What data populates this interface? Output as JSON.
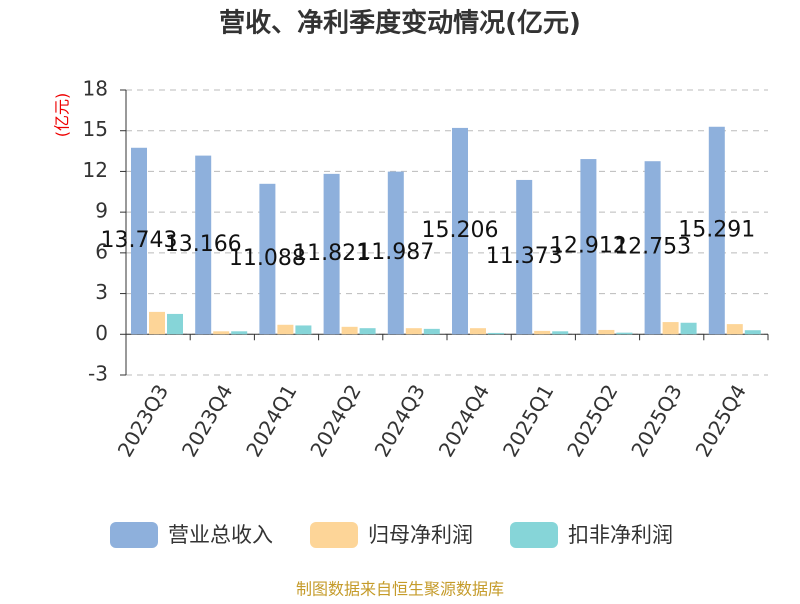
{
  "chart_data": {
    "type": "bar",
    "title": "营收、净利季度变动情况(亿元)",
    "y_label": "(亿元)",
    "source": "制图数据来自恒生聚源数据库",
    "categories": [
      "2023Q3",
      "2023Q4",
      "2024Q1",
      "2024Q2",
      "2024Q3",
      "2024Q4",
      "2025Q1",
      "2025Q2",
      "2025Q3",
      "2025Q4"
    ],
    "series": [
      {
        "name": "营业总收入",
        "color": "#8eb0dc",
        "values": [
          13.743,
          13.166,
          11.088,
          11.821,
          11.987,
          15.206,
          11.373,
          12.912,
          12.753,
          15.291
        ]
      },
      {
        "name": "归母净利润",
        "color": "#fdd598",
        "values": [
          1.65,
          0.22,
          0.7,
          0.55,
          0.45,
          0.45,
          0.25,
          0.32,
          0.9,
          0.75
        ]
      },
      {
        "name": "扣非净利润",
        "color": "#86d5d8",
        "values": [
          1.5,
          0.22,
          0.65,
          0.45,
          0.4,
          0.1,
          0.22,
          0.12,
          0.85,
          0.3
        ]
      }
    ],
    "ylim": [
      -3,
      18
    ],
    "yticks": [
      -3,
      0,
      3,
      6,
      9,
      12,
      15,
      18
    ],
    "grid": true
  }
}
